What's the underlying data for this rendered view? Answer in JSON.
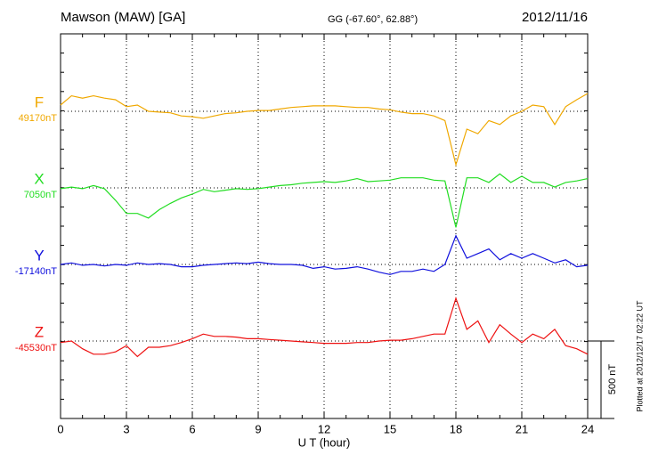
{
  "chart_data": {
    "type": "line",
    "title": "Mawson (MAW)  [GA]",
    "subtitle": "GG (-67.60°,  62.88°)",
    "date": "2012/11/16",
    "x_label": "U T (hour)",
    "footer": "Plotted at 2012/12/17 02:22 UT",
    "xlim": [
      0,
      24
    ],
    "xticks": [
      0,
      3,
      6,
      9,
      12,
      15,
      18,
      21,
      24
    ],
    "grid": true,
    "scale_bar": {
      "value": 500,
      "label": "500 nT"
    },
    "x": [
      0,
      0.5,
      1,
      1.5,
      2,
      2.5,
      3,
      3.5,
      4,
      4.5,
      5,
      5.5,
      6,
      6.5,
      7,
      7.5,
      8,
      8.5,
      9,
      9.5,
      10,
      10.5,
      11,
      11.5,
      12,
      12.5,
      13,
      13.5,
      14,
      14.5,
      15,
      15.5,
      16,
      16.5,
      17,
      17.5,
      18,
      18.5,
      19,
      19.5,
      20,
      20.5,
      21,
      21.5,
      22,
      22.5,
      23,
      23.5,
      24
    ],
    "series": [
      {
        "name": "F",
        "color": "#f0a800",
        "baseline": {
          "value": 49170,
          "label": "49170nT"
        },
        "values": [
          49210,
          49270,
          49255,
          49270,
          49255,
          49245,
          49200,
          49210,
          49170,
          49165,
          49160,
          49140,
          49135,
          49125,
          49140,
          49155,
          49160,
          49170,
          49175,
          49175,
          49185,
          49195,
          49200,
          49205,
          49205,
          49205,
          49200,
          49195,
          49195,
          49185,
          49180,
          49165,
          49155,
          49155,
          49140,
          49110,
          48825,
          49055,
          49025,
          49110,
          49085,
          49140,
          49170,
          49210,
          49200,
          49085,
          49200,
          49245,
          49285
        ]
      },
      {
        "name": "X",
        "color": "#22dd22",
        "baseline": {
          "value": 7050,
          "label": "7050nT"
        },
        "values": [
          7045,
          7055,
          7045,
          7065,
          7045,
          6970,
          6885,
          6885,
          6855,
          6910,
          6950,
          6985,
          7010,
          7040,
          7025,
          7035,
          7045,
          7040,
          7045,
          7055,
          7065,
          7070,
          7080,
          7085,
          7090,
          7085,
          7095,
          7110,
          7090,
          7095,
          7100,
          7115,
          7115,
          7115,
          7100,
          7095,
          6795,
          7115,
          7115,
          7085,
          7140,
          7085,
          7125,
          7085,
          7085,
          7055,
          7085,
          7095,
          7110
        ]
      },
      {
        "name": "Y",
        "color": "#1010dd",
        "baseline": {
          "value": -17140,
          "label": "-17140nT"
        },
        "values": [
          -17140,
          -17130,
          -17145,
          -17140,
          -17150,
          -17140,
          -17145,
          -17130,
          -17140,
          -17135,
          -17140,
          -17155,
          -17155,
          -17145,
          -17140,
          -17135,
          -17130,
          -17135,
          -17125,
          -17135,
          -17140,
          -17140,
          -17145,
          -17165,
          -17155,
          -17170,
          -17165,
          -17155,
          -17170,
          -17190,
          -17205,
          -17185,
          -17185,
          -17170,
          -17185,
          -17140,
          -16955,
          -17100,
          -17070,
          -17040,
          -17110,
          -17070,
          -17100,
          -17070,
          -17100,
          -17130,
          -17110,
          -17155,
          -17145
        ]
      },
      {
        "name": "Z",
        "color": "#ee1111",
        "baseline": {
          "value": -45530,
          "label": "-45530nT"
        },
        "values": [
          -45540,
          -45530,
          -45580,
          -45615,
          -45615,
          -45600,
          -45560,
          -45630,
          -45570,
          -45570,
          -45560,
          -45540,
          -45515,
          -45485,
          -45500,
          -45500,
          -45505,
          -45515,
          -45515,
          -45520,
          -45525,
          -45530,
          -45535,
          -45540,
          -45545,
          -45545,
          -45545,
          -45540,
          -45540,
          -45530,
          -45525,
          -45525,
          -45515,
          -45500,
          -45485,
          -45485,
          -45255,
          -45455,
          -45400,
          -45540,
          -45425,
          -45485,
          -45540,
          -45485,
          -45515,
          -45455,
          -45560,
          -45580,
          -45615
        ]
      }
    ]
  }
}
